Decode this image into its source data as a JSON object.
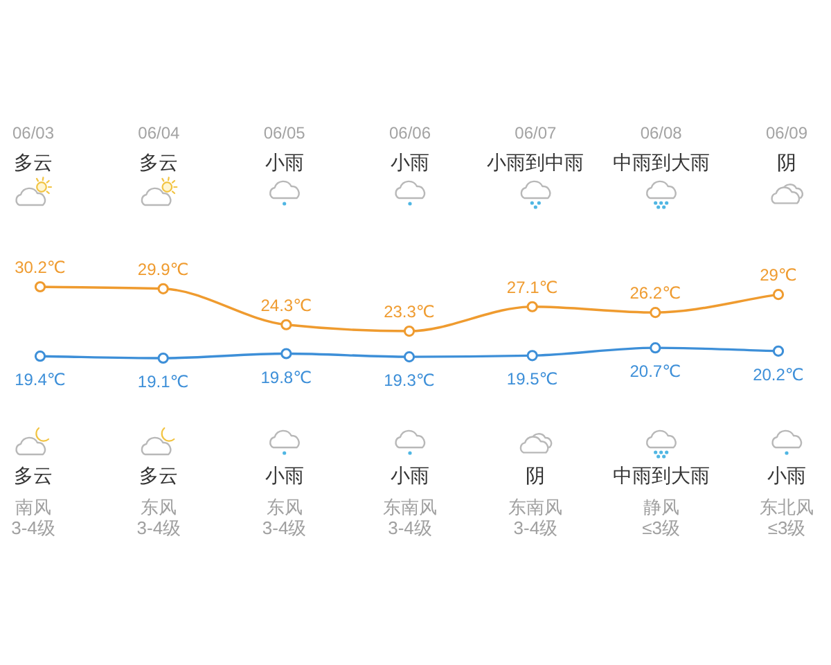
{
  "chart_data": {
    "type": "line",
    "categories": [
      "06/03",
      "06/04",
      "06/05",
      "06/06",
      "06/07",
      "06/08",
      "06/09"
    ],
    "series": [
      {
        "color": "#ef9b2f",
        "values": [
          30.2,
          29.9,
          24.3,
          23.3,
          27.1,
          26.2,
          29
        ],
        "value_labels": [
          "30.2℃",
          "29.9℃",
          "24.3℃",
          "23.3℃",
          "27.1℃",
          "26.2℃",
          "29℃"
        ]
      },
      {
        "color": "#3d8fd8",
        "values": [
          19.4,
          19.1,
          19.8,
          19.3,
          19.5,
          20.7,
          20.2
        ],
        "value_labels": [
          "19.4℃",
          "19.1℃",
          "19.8℃",
          "19.3℃",
          "19.5℃",
          "20.7℃",
          "20.2℃"
        ]
      }
    ],
    "marker": "circle",
    "line_style": "solid",
    "tick_labels": "x",
    "annotations": [
      "多云",
      "多云",
      "小雨",
      "小雨",
      "小雨到中雨",
      "中雨到大雨",
      "阴",
      "多云",
      "多云",
      "小雨",
      "小雨",
      "阴",
      "中雨到大雨",
      "小雨",
      "南风",
      "东风",
      "东风",
      "东南风",
      "东南风",
      "静风",
      "东北风",
      "3-4级",
      "3-4级",
      "3-4级",
      "3-4级",
      "3-4级",
      "≤3级",
      "≤3级"
    ]
  }
}
